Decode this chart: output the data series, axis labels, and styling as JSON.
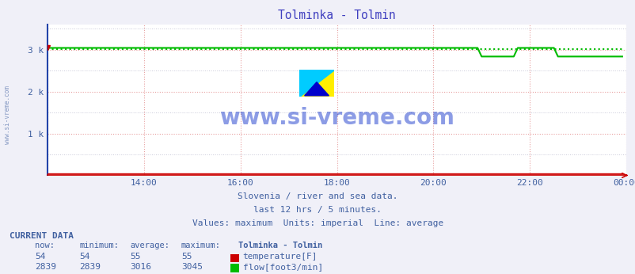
{
  "title": "Tolminka - Tolmin",
  "title_color": "#4040c0",
  "bg_color": "#f0f0f8",
  "plot_bg_color": "#ffffff",
  "y_ticks": [
    0,
    1000,
    2000,
    3000
  ],
  "y_tick_labels": [
    "",
    "1 k",
    "2 k",
    "3 k"
  ],
  "ylim": [
    0,
    3600
  ],
  "xlim": [
    0,
    144
  ],
  "grid_color_h": "#c8c8d8",
  "grid_color_h_major": "#e8a0a0",
  "grid_color_v": "#e8a0a0",
  "left_spine_color": "#2244aa",
  "bottom_spine_color": "#cc0000",
  "tick_color": "#4060a0",
  "temp_line_color": "#cc0000",
  "flow_line_color": "#00bb00",
  "flow_avg_color": "#00bb00",
  "watermark": "www.si-vreme.com",
  "watermark_color": "#1a3acc",
  "watermark_alpha": 0.5,
  "subtitle1": "Slovenia / river and sea data.",
  "subtitle2": "last 12 hrs / 5 minutes.",
  "subtitle3": "Values: maximum  Units: imperial  Line: average",
  "subtitle_color": "#4060a0",
  "current_data_label": "CURRENT DATA",
  "col_headers": [
    "now:",
    "minimum:",
    "average:",
    "maximum:",
    "Tolminka - Tolmin"
  ],
  "temp_now": 54,
  "temp_min": 54,
  "temp_avg": 55,
  "temp_max": 55,
  "flow_now": 2839,
  "flow_min": 2839,
  "flow_avg": 3016,
  "flow_max": 3045,
  "temp_label": "temperature[F]",
  "flow_label": "flow[foot3/min]",
  "temp_swatch": "#cc0000",
  "flow_swatch": "#00bb00",
  "x_tick_positions": [
    0,
    24,
    48,
    72,
    96,
    120,
    144
  ],
  "x_tick_labels": [
    "",
    "14:00",
    "16:00",
    "18:00",
    "20:00",
    "22:00",
    "00:00"
  ]
}
